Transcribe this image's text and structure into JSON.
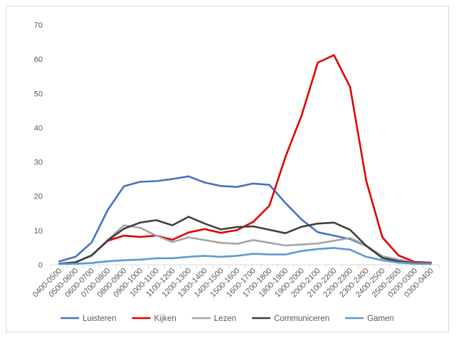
{
  "chart_data": {
    "type": "line",
    "title": "",
    "xlabel": "",
    "ylabel": "",
    "ylim": [
      0,
      70
    ],
    "yticks": [
      0,
      10,
      20,
      30,
      40,
      50,
      60,
      70
    ],
    "grid": false,
    "legend_position": "bottom",
    "categories": [
      "0400-0500",
      "0500-0600",
      "0600-0700",
      "0700-0800",
      "0800-0900",
      "0900-1000",
      "1000-1100",
      "1100-1200",
      "1200-1300",
      "1300-1400",
      "1400-1500",
      "1500-1600",
      "1600-1700",
      "1700-1800",
      "1800-1900",
      "1900-2000",
      "2000-2100",
      "2100-2200",
      "2200-2300",
      "2300-2400",
      "2400-2500",
      "2500-2600",
      "0200-0300",
      "0300-0400"
    ],
    "series": [
      {
        "name": "Luisteren",
        "color": "#4472C4",
        "values": [
          1.0,
          2.3,
          6.5,
          16.0,
          22.9,
          24.2,
          24.4,
          25.0,
          25.8,
          24.0,
          23.0,
          22.7,
          23.7,
          23.3,
          18.0,
          13.2,
          9.5,
          8.5,
          7.5,
          5.5,
          2.0,
          1.0,
          0.5,
          0.3
        ]
      },
      {
        "name": "Kijken",
        "color": "#E00000",
        "values": [
          0.3,
          0.7,
          2.7,
          7.0,
          8.5,
          8.1,
          8.5,
          7.3,
          9.4,
          10.4,
          9.3,
          10.1,
          12.5,
          17.2,
          31.5,
          43.6,
          59.0,
          61.2,
          51.9,
          24.5,
          8.0,
          2.7,
          0.8,
          0.6
        ]
      },
      {
        "name": "Lezen",
        "color": "#A5A5A5",
        "values": [
          0.3,
          0.6,
          2.7,
          7.2,
          11.5,
          10.8,
          8.5,
          6.6,
          8.0,
          7.2,
          6.4,
          6.1,
          7.2,
          6.4,
          5.6,
          5.9,
          6.2,
          7.0,
          7.8,
          5.6,
          2.5,
          1.5,
          0.6,
          0.4
        ]
      },
      {
        "name": "Communiceren",
        "color": "#404040",
        "values": [
          0.3,
          0.7,
          2.7,
          7.1,
          10.5,
          12.3,
          13.0,
          11.5,
          14.0,
          12.0,
          10.3,
          11.0,
          11.2,
          10.2,
          9.2,
          11.1,
          12.0,
          12.3,
          10.2,
          5.5,
          2.0,
          1.0,
          0.5,
          0.3
        ]
      },
      {
        "name": "Gamen",
        "color": "#5B9BD5",
        "values": [
          0.2,
          0.3,
          0.5,
          1.0,
          1.3,
          1.5,
          1.9,
          1.9,
          2.3,
          2.6,
          2.3,
          2.6,
          3.2,
          3.0,
          3.0,
          4.0,
          4.6,
          4.9,
          4.4,
          2.3,
          1.3,
          0.6,
          0.3,
          0.2
        ]
      }
    ]
  }
}
